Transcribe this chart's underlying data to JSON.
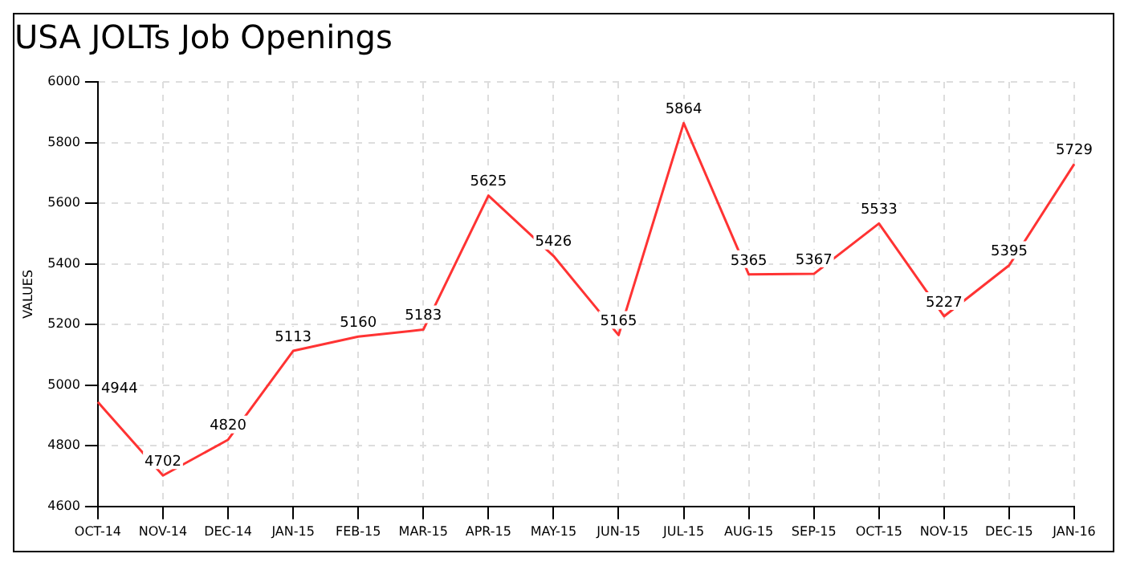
{
  "chart_data": {
    "type": "line",
    "title": "USA JOLTs Job Openings",
    "ylabel": "VALUES",
    "categories": [
      "OCT-14",
      "NOV-14",
      "DEC-14",
      "JAN-15",
      "FEB-15",
      "MAR-15",
      "APR-15",
      "MAY-15",
      "JUN-15",
      "JUL-15",
      "AUG-15",
      "SEP-15",
      "OCT-15",
      "NOV-15",
      "DEC-15",
      "JAN-16"
    ],
    "series": [
      {
        "color": "#ff3333",
        "values": [
          4944,
          4702,
          4820,
          5113,
          5160,
          5183,
          5625,
          5426,
          5165,
          5864,
          5365,
          5367,
          5533,
          5227,
          5395,
          5729
        ]
      }
    ],
    "ylim": [
      4600,
      6000
    ],
    "yticks": [
      4600,
      4800,
      5000,
      5200,
      5400,
      5600,
      5800,
      6000
    ],
    "grid": true,
    "legend": false,
    "marker": "none",
    "line_style": "solid",
    "data_labels": true
  }
}
